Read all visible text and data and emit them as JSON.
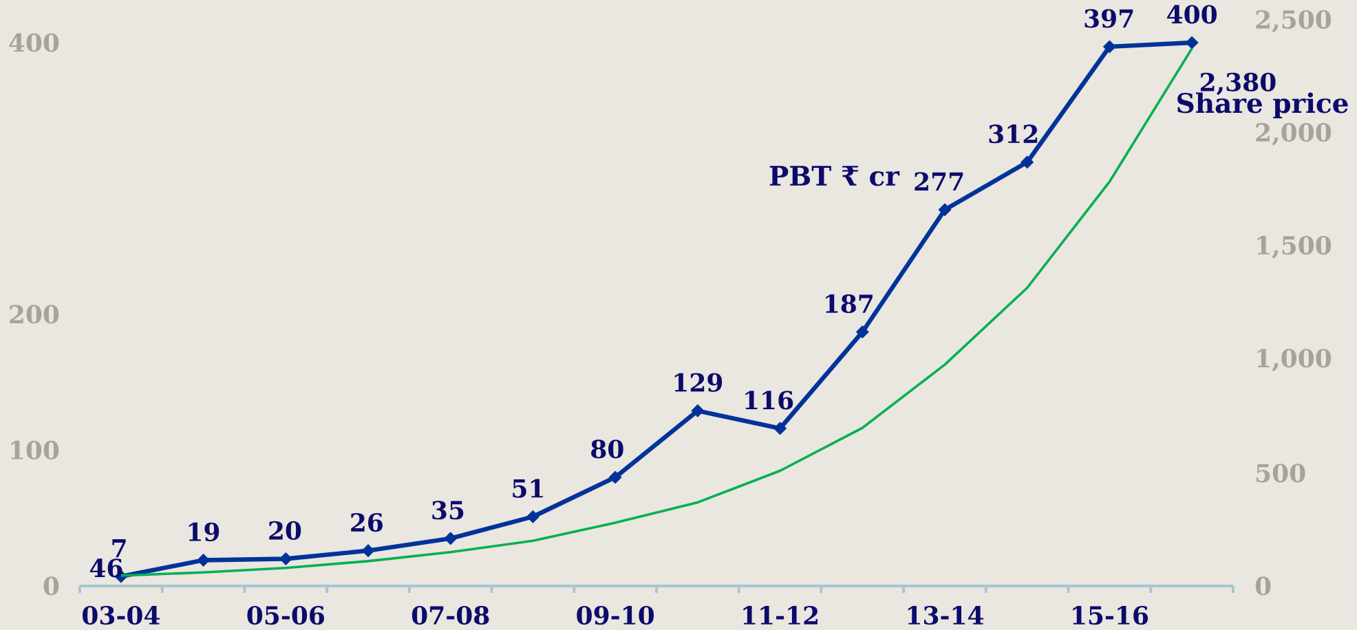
{
  "chart_data": {
    "type": "line",
    "categories": [
      "03-04",
      null,
      "05-06",
      null,
      "07-08",
      null,
      "09-10",
      null,
      "11-12",
      null,
      "13-14",
      null,
      "15-16",
      null
    ],
    "series": [
      {
        "name": "PBT ₹ cr",
        "color": "#003399",
        "marker": "diamond",
        "values": [
          7,
          19,
          20,
          26,
          35,
          51,
          80,
          129,
          116,
          187,
          277,
          312,
          397,
          400
        ],
        "value_labels": [
          "7",
          "19",
          "20",
          "26",
          "35",
          "51",
          "80",
          "129",
          "116",
          "187",
          "277",
          "312",
          "397",
          "400"
        ]
      },
      {
        "name": "Share price",
        "color": "#00b050",
        "axis": "y2",
        "values": [
          46,
          60,
          80,
          110,
          150,
          200,
          280,
          370,
          510,
          700,
          980,
          1320,
          1790,
          2380
        ],
        "value_labels": [
          "46",
          null,
          null,
          null,
          null,
          null,
          null,
          null,
          null,
          null,
          null,
          null,
          null,
          "2,380"
        ]
      }
    ],
    "ylim": [
      0,
      400
    ],
    "yticks": [
      0,
      100,
      200,
      400
    ],
    "y2lim": [
      0,
      2500
    ],
    "y2ticks": [
      0,
      500,
      {
        "value": 1000,
        "label": "1,000"
      },
      {
        "value": 1500,
        "label": "1,500"
      },
      {
        "value": 2000,
        "label": "2,000"
      },
      {
        "value": 2500,
        "label": "2,500"
      }
    ]
  }
}
